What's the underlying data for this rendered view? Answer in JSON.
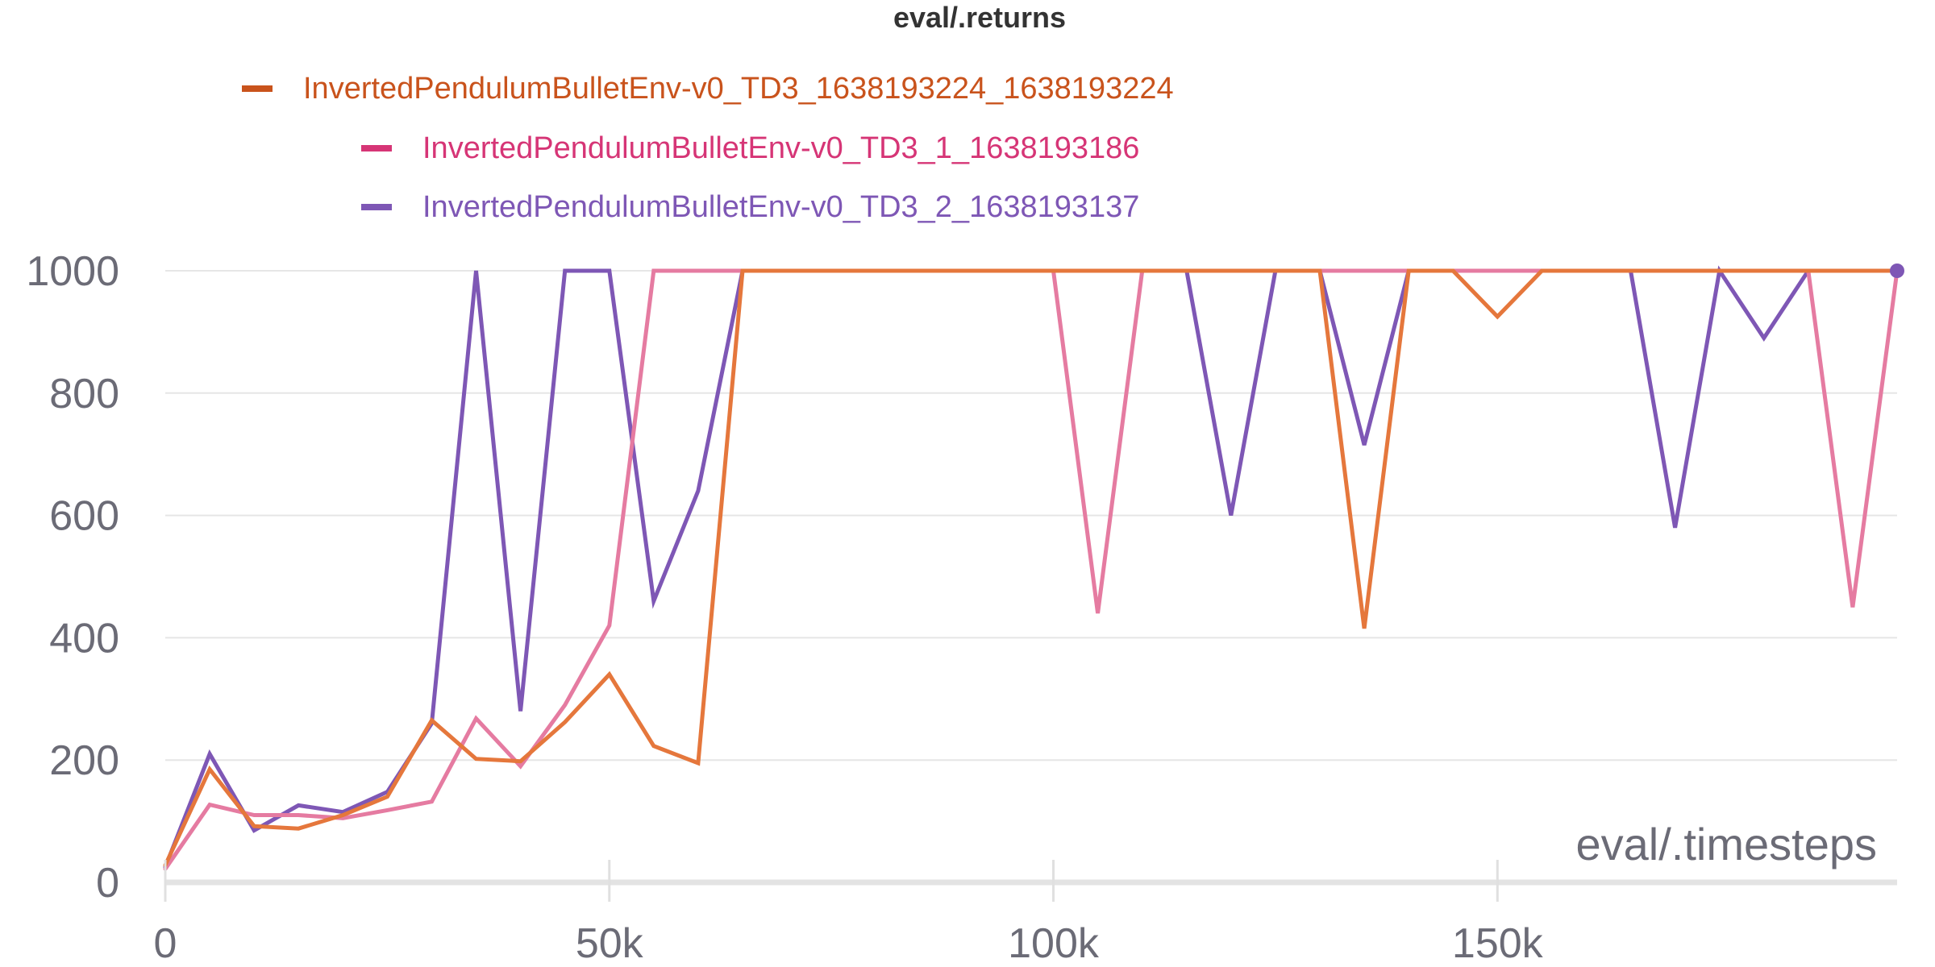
{
  "chart_data": {
    "type": "line",
    "title": "eval/.returns",
    "xlabel": "eval/.timesteps",
    "ylabel": "",
    "xlim": [
      0,
      195000
    ],
    "ylim": [
      0,
      1000
    ],
    "x_ticks": [
      {
        "value": 0,
        "label": "0"
      },
      {
        "value": 50000,
        "label": "50k"
      },
      {
        "value": 100000,
        "label": "100k"
      },
      {
        "value": 150000,
        "label": "150k"
      }
    ],
    "y_ticks": [
      {
        "value": 0,
        "label": "0"
      },
      {
        "value": 200,
        "label": "200"
      },
      {
        "value": 400,
        "label": "400"
      },
      {
        "value": 600,
        "label": "600"
      },
      {
        "value": 800,
        "label": "800"
      },
      {
        "value": 1000,
        "label": "1000"
      }
    ],
    "grid": true,
    "legend_position": "top-left",
    "series": [
      {
        "name": "InvertedPendulumBulletEnv-v0_TD3_2_1638193137",
        "color": "#7e57b5",
        "legend_color": "#7e57b5",
        "points": [
          [
            0,
            25
          ],
          [
            5000,
            210
          ],
          [
            10000,
            85
          ],
          [
            15000,
            126
          ],
          [
            20000,
            115
          ],
          [
            25000,
            148
          ],
          [
            30000,
            260
          ],
          [
            35000,
            1000
          ],
          [
            40000,
            280
          ],
          [
            45000,
            1000
          ],
          [
            50000,
            1000
          ],
          [
            55000,
            460
          ],
          [
            60000,
            640
          ],
          [
            65000,
            1000
          ],
          [
            70000,
            1000
          ],
          [
            75000,
            1000
          ],
          [
            80000,
            1000
          ],
          [
            85000,
            1000
          ],
          [
            90000,
            1000
          ],
          [
            95000,
            1000
          ],
          [
            100000,
            1000
          ],
          [
            105000,
            1000
          ],
          [
            110000,
            1000
          ],
          [
            115000,
            1000
          ],
          [
            120000,
            600
          ],
          [
            125000,
            1000
          ],
          [
            130000,
            1000
          ],
          [
            135000,
            715
          ],
          [
            140000,
            1000
          ],
          [
            145000,
            1000
          ],
          [
            150000,
            1000
          ],
          [
            155000,
            1000
          ],
          [
            160000,
            1000
          ],
          [
            165000,
            1000
          ],
          [
            170000,
            580
          ],
          [
            175000,
            1000
          ],
          [
            180000,
            890
          ],
          [
            185000,
            1000
          ],
          [
            190000,
            1000
          ],
          [
            195000,
            1000
          ]
        ]
      },
      {
        "name": "InvertedPendulumBulletEnv-v0_TD3_1_1638193186",
        "color": "#e57ba1",
        "legend_color": "#d63576",
        "points": [
          [
            0,
            22
          ],
          [
            5000,
            127
          ],
          [
            10000,
            110
          ],
          [
            15000,
            110
          ],
          [
            20000,
            105
          ],
          [
            25000,
            118
          ],
          [
            30000,
            132
          ],
          [
            35000,
            268
          ],
          [
            40000,
            190
          ],
          [
            45000,
            290
          ],
          [
            50000,
            420
          ],
          [
            55000,
            1000
          ],
          [
            60000,
            1000
          ],
          [
            65000,
            1000
          ],
          [
            70000,
            1000
          ],
          [
            75000,
            1000
          ],
          [
            80000,
            1000
          ],
          [
            85000,
            1000
          ],
          [
            90000,
            1000
          ],
          [
            95000,
            1000
          ],
          [
            100000,
            1000
          ],
          [
            105000,
            440
          ],
          [
            110000,
            1000
          ],
          [
            115000,
            1000
          ],
          [
            120000,
            1000
          ],
          [
            125000,
            1000
          ],
          [
            130000,
            1000
          ],
          [
            135000,
            1000
          ],
          [
            140000,
            1000
          ],
          [
            145000,
            1000
          ],
          [
            150000,
            1000
          ],
          [
            155000,
            1000
          ],
          [
            160000,
            1000
          ],
          [
            165000,
            1000
          ],
          [
            170000,
            1000
          ],
          [
            175000,
            1000
          ],
          [
            180000,
            1000
          ],
          [
            185000,
            1000
          ],
          [
            190000,
            450
          ],
          [
            195000,
            1000
          ]
        ]
      },
      {
        "name": "InvertedPendulumBulletEnv-v0_TD3_1638193224_1638193224",
        "color": "#e5773c",
        "legend_color": "#c9531c",
        "points": [
          [
            0,
            28
          ],
          [
            5000,
            185
          ],
          [
            10000,
            92
          ],
          [
            15000,
            88
          ],
          [
            20000,
            110
          ],
          [
            25000,
            140
          ],
          [
            30000,
            265
          ],
          [
            35000,
            202
          ],
          [
            40000,
            198
          ],
          [
            45000,
            262
          ],
          [
            50000,
            340
          ],
          [
            55000,
            223
          ],
          [
            60000,
            195
          ],
          [
            65000,
            1000
          ],
          [
            70000,
            1000
          ],
          [
            75000,
            1000
          ],
          [
            80000,
            1000
          ],
          [
            85000,
            1000
          ],
          [
            90000,
            1000
          ],
          [
            95000,
            1000
          ],
          [
            100000,
            1000
          ],
          [
            105000,
            1000
          ],
          [
            110000,
            1000
          ],
          [
            115000,
            1000
          ],
          [
            120000,
            1000
          ],
          [
            125000,
            1000
          ],
          [
            130000,
            1000
          ],
          [
            135000,
            415
          ],
          [
            140000,
            1000
          ],
          [
            145000,
            1000
          ],
          [
            150000,
            925
          ],
          [
            155000,
            1000
          ],
          [
            160000,
            1000
          ],
          [
            165000,
            1000
          ],
          [
            170000,
            1000
          ],
          [
            175000,
            1000
          ],
          [
            180000,
            1000
          ],
          [
            185000,
            1000
          ],
          [
            190000,
            1000
          ],
          [
            195000,
            1000
          ]
        ]
      }
    ],
    "legend_order": [
      2,
      1,
      0
    ]
  }
}
